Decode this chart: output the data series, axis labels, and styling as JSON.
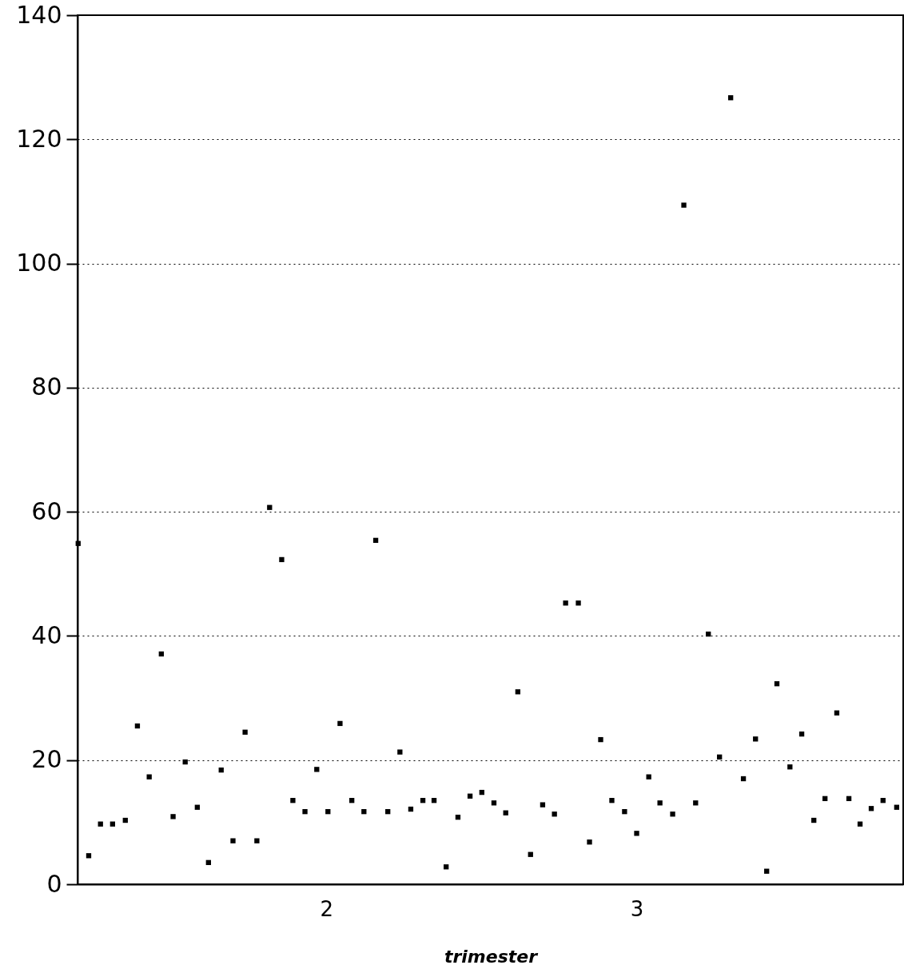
{
  "chart_data": {
    "type": "scatter",
    "xlabel": "trimester",
    "x": [
      1.2,
      1.234,
      1.272,
      1.311,
      1.352,
      1.391,
      1.429,
      1.468,
      1.506,
      1.545,
      1.584,
      1.62,
      1.661,
      1.699,
      1.738,
      1.776,
      1.817,
      1.856,
      1.892,
      1.931,
      1.969,
      2.005,
      2.044,
      2.082,
      2.121,
      2.159,
      2.198,
      2.237,
      2.272,
      2.311,
      2.347,
      2.386,
      2.424,
      2.463,
      2.501,
      2.54,
      2.578,
      2.617,
      2.658,
      2.697,
      2.735,
      2.771,
      2.812,
      2.848,
      2.884,
      2.92,
      2.961,
      3.0,
      3.039,
      3.075,
      3.116,
      3.152,
      3.19,
      3.231,
      3.267,
      3.303,
      3.344,
      3.383,
      3.419,
      3.452,
      3.494,
      3.532,
      3.571,
      3.607,
      3.645,
      3.684,
      3.72,
      3.756,
      3.794,
      3.838
    ],
    "series": [
      {
        "color": "#000000",
        "values": [
          54.9,
          4.6,
          9.7,
          9.7,
          10.3,
          25.5,
          17.3,
          37.1,
          10.9,
          19.7,
          12.4,
          3.5,
          18.4,
          7.0,
          24.5,
          7.0,
          60.7,
          52.3,
          13.5,
          11.7,
          18.5,
          11.7,
          25.9,
          13.5,
          11.7,
          55.4,
          11.7,
          21.3,
          12.1,
          13.5,
          13.5,
          2.8,
          10.8,
          14.2,
          14.8,
          13.1,
          11.5,
          31.0,
          4.8,
          12.8,
          11.3,
          45.3,
          45.3,
          6.8,
          23.3,
          13.5,
          11.7,
          8.2,
          17.3,
          13.1,
          11.3,
          109.4,
          13.1,
          40.3,
          20.5,
          126.7,
          17.0,
          23.4,
          2.1,
          32.3,
          18.9,
          24.2,
          10.3,
          13.8,
          27.6,
          13.8,
          9.7,
          12.2,
          13.5,
          12.4
        ]
      }
    ],
    "xlim": [
      1.198,
      3.859
    ],
    "xticks": [
      2,
      3
    ],
    "ylim": [
      0,
      140
    ],
    "yticks": [
      0,
      20,
      40,
      60,
      80,
      100,
      120,
      140
    ],
    "grid": "y",
    "marker": "square"
  }
}
